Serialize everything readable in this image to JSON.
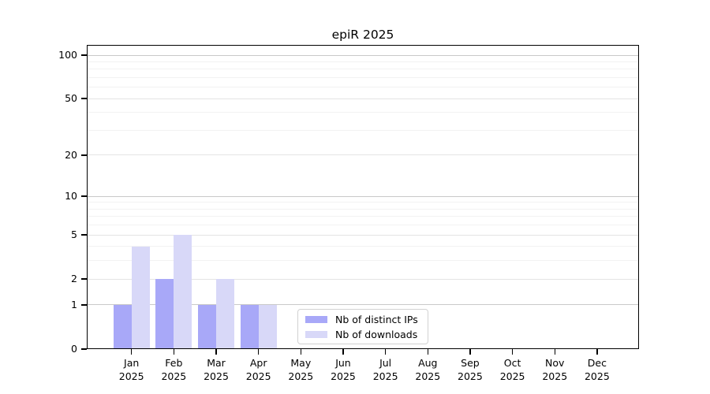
{
  "chart_data": {
    "type": "bar",
    "title": "epiR 2025",
    "categories": [
      "Jan 2025",
      "Feb 2025",
      "Mar 2025",
      "Apr 2025",
      "May 2025",
      "Jun 2025",
      "Jul 2025",
      "Aug 2025",
      "Sep 2025",
      "Oct 2025",
      "Nov 2025",
      "Dec 2025"
    ],
    "months": [
      "Jan",
      "Feb",
      "Mar",
      "Apr",
      "May",
      "Jun",
      "Jul",
      "Aug",
      "Sep",
      "Oct",
      "Nov",
      "Dec"
    ],
    "year": "2025",
    "series": [
      {
        "name": "Nb of distinct IPs",
        "color": "#a8a8f8",
        "values": [
          1,
          2,
          1,
          1,
          0,
          0,
          0,
          0,
          0,
          0,
          0,
          0
        ]
      },
      {
        "name": "Nb of downloads",
        "color": "#d8d8f8",
        "values": [
          4,
          5,
          2,
          1,
          0,
          0,
          0,
          0,
          0,
          0,
          0,
          0
        ]
      }
    ],
    "y_scale": "log1p",
    "ylim": [
      0,
      100
    ],
    "y_tick_values": [
      0,
      1,
      2,
      5,
      10,
      20,
      50,
      100
    ],
    "y_tick_labels": [
      "0",
      "1",
      "2",
      "5",
      "10",
      "20",
      "50",
      "100"
    ],
    "y_gridlines": {
      "strong": [
        1,
        10,
        100
      ],
      "medium": [
        2,
        5,
        20,
        50
      ],
      "minor": [
        3,
        4,
        6,
        7,
        8,
        9,
        30,
        40,
        60,
        70,
        80,
        90
      ]
    },
    "grid": "horizontal",
    "legend": {
      "position": "lower center",
      "entries": [
        "Nb of distinct IPs",
        "Nb of downloads"
      ]
    },
    "colors": {
      "axis": "#000000",
      "grid_strong": "#c9c9c9",
      "grid_medium": "#e4e4e4",
      "grid_minor": "#f2f2f2",
      "legend_border": "#d2d2d2",
      "background": "#ffffff"
    }
  }
}
